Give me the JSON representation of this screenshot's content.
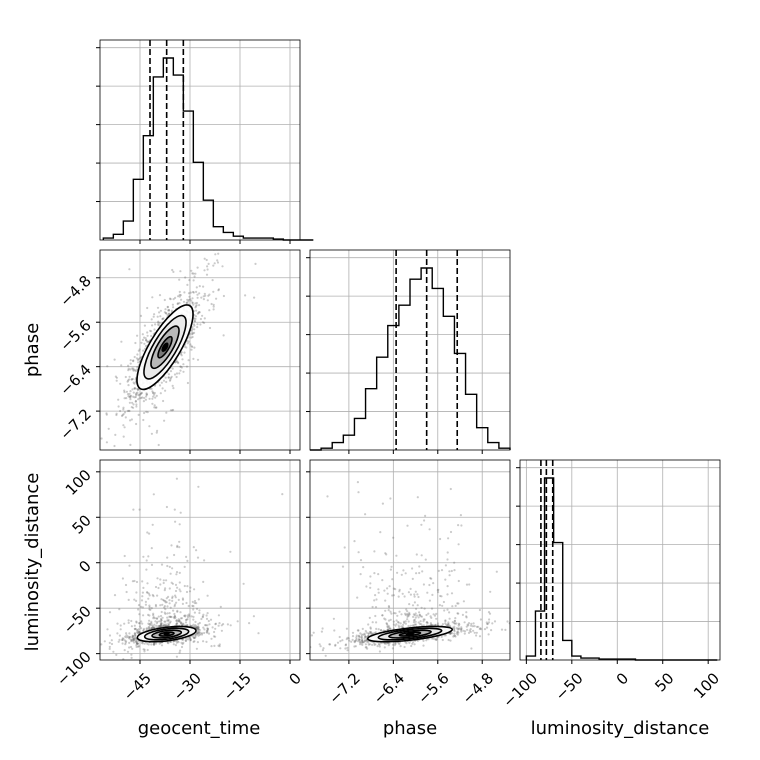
{
  "chart_data": {
    "type": "corner",
    "parameters": [
      "geocent_time",
      "phase",
      "luminosity_distance"
    ],
    "grid": true,
    "ranges": {
      "geocent_time": [
        -57,
        3
      ],
      "phase": [
        -7.9,
        -4.3
      ],
      "luminosity_distance": [
        -107,
        113
      ]
    },
    "ticks": {
      "geocent_time": [
        -45,
        -30,
        -15,
        0
      ],
      "phase": [
        -7.2,
        -6.4,
        -5.6,
        -4.8
      ],
      "luminosity_distance": [
        -100,
        -50,
        0,
        50,
        100
      ]
    },
    "tick_labels": {
      "geocent_time": [
        "−45",
        "−30",
        "−15",
        "0"
      ],
      "phase": [
        "−7.2",
        "−6.4",
        "−5.6",
        "−4.8"
      ],
      "luminosity_distance": [
        "−100",
        "−50",
        "0",
        "50",
        "100"
      ]
    },
    "histograms": {
      "geocent_time": {
        "bin_start": -56,
        "bin_width": 3,
        "counts": [
          0.01,
          0.03,
          0.1,
          0.32,
          0.55,
          0.86,
          0.96,
          0.87,
          0.68,
          0.41,
          0.21,
          0.07,
          0.04,
          0.02,
          0.01,
          0.01,
          0.01,
          0.005,
          0,
          0,
          0
        ],
        "quantiles": [
          -42.0,
          -37.0,
          -32.0
        ]
      },
      "phase": {
        "bin_start": -7.9,
        "bin_width": 0.2,
        "counts": [
          0,
          0.01,
          0.04,
          0.08,
          0.17,
          0.33,
          0.5,
          0.67,
          0.78,
          0.92,
          0.98,
          0.87,
          0.72,
          0.52,
          0.3,
          0.12,
          0.04,
          0.01
        ],
        "quantiles": [
          -6.35,
          -5.8,
          -5.25
        ]
      },
      "luminosity_distance": {
        "bin_start": -100,
        "bin_width": 10,
        "counts": [
          0.02,
          0.25,
          0.93,
          0.6,
          0.1,
          0.02,
          0.01,
          0.01,
          0.005,
          0.005,
          0.005,
          0.005,
          0,
          0,
          0,
          0,
          0,
          0,
          0,
          0,
          0
        ],
        "quantiles": [
          -84,
          -78,
          -71
        ]
      }
    },
    "contours_2d": [
      {
        "x": "geocent_time",
        "y": "phase",
        "center": [
          -37.5,
          -6.05
        ],
        "sx": 4.2,
        "sy": 0.38,
        "rho": 0.78,
        "sigma_levels": [
          0.5,
          1.0,
          1.5,
          2.0
        ],
        "scatter_count": 1400
      },
      {
        "x": "geocent_time",
        "y": "luminosity_distance",
        "center": [
          -37.0,
          -78.5
        ],
        "sx": 4.4,
        "sy": 4.2,
        "rho": 0.45,
        "sigma_levels": [
          0.5,
          1.0,
          1.5,
          2.0
        ],
        "scatter_count": 1400
      },
      {
        "x": "phase",
        "y": "luminosity_distance",
        "center": [
          -6.1,
          -78.5
        ],
        "sx": 0.38,
        "sy": 4.2,
        "rho": 0.6,
        "sigma_levels": [
          0.5,
          1.0,
          1.5,
          2.0
        ],
        "scatter_count": 1400
      }
    ]
  }
}
